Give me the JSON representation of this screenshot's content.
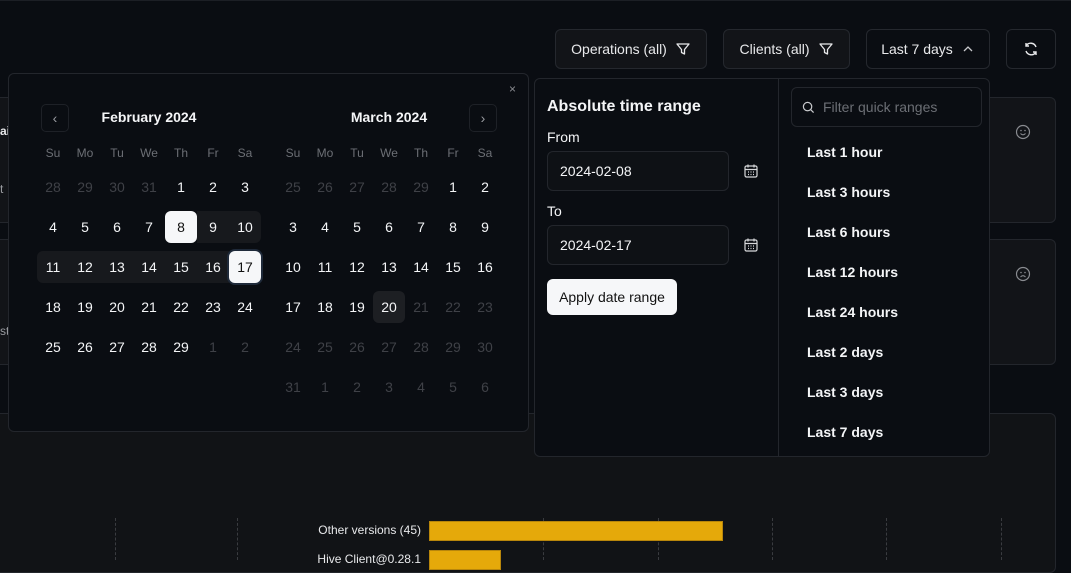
{
  "toolbar": {
    "operations_label": "Operations (all)",
    "clients_label": "Clients (all)",
    "range_label": "Last 7 days"
  },
  "background": {
    "fragments": [
      "ai",
      "t",
      "st"
    ]
  },
  "chart_data": {
    "type": "bar",
    "orientation": "horizontal",
    "categories": [
      "Other versions (45)",
      "Hive Client@0.28.1"
    ],
    "values": [
      45,
      11
    ],
    "bar_color": "#e5a90a",
    "grid": true
  },
  "calendar": {
    "months": [
      {
        "title": "February 2024",
        "weekdays": [
          "Su",
          "Mo",
          "Tu",
          "We",
          "Th",
          "Fr",
          "Sa"
        ],
        "weeks": [
          [
            {
              "d": "28",
              "s": "outside"
            },
            {
              "d": "29",
              "s": "outside"
            },
            {
              "d": "30",
              "s": "outside"
            },
            {
              "d": "31",
              "s": "outside"
            },
            {
              "d": "1"
            },
            {
              "d": "2"
            },
            {
              "d": "3"
            }
          ],
          [
            {
              "d": "4"
            },
            {
              "d": "5"
            },
            {
              "d": "6"
            },
            {
              "d": "7"
            },
            {
              "d": "8",
              "s": "range-start"
            },
            {
              "d": "9",
              "s": "range"
            },
            {
              "d": "10",
              "s": "range"
            }
          ],
          [
            {
              "d": "11",
              "s": "range"
            },
            {
              "d": "12",
              "s": "range"
            },
            {
              "d": "13",
              "s": "range"
            },
            {
              "d": "14",
              "s": "range"
            },
            {
              "d": "15",
              "s": "range"
            },
            {
              "d": "16",
              "s": "range"
            },
            {
              "d": "17",
              "s": "range-end"
            }
          ],
          [
            {
              "d": "18"
            },
            {
              "d": "19"
            },
            {
              "d": "20"
            },
            {
              "d": "21"
            },
            {
              "d": "22"
            },
            {
              "d": "23"
            },
            {
              "d": "24"
            }
          ],
          [
            {
              "d": "25"
            },
            {
              "d": "26"
            },
            {
              "d": "27"
            },
            {
              "d": "28"
            },
            {
              "d": "29"
            },
            {
              "d": "1",
              "s": "outside"
            },
            {
              "d": "2",
              "s": "outside"
            }
          ]
        ]
      },
      {
        "title": "March 2024",
        "weekdays": [
          "Su",
          "Mo",
          "Tu",
          "We",
          "Th",
          "Fr",
          "Sa"
        ],
        "weeks": [
          [
            {
              "d": "25",
              "s": "outside"
            },
            {
              "d": "26",
              "s": "outside"
            },
            {
              "d": "27",
              "s": "outside"
            },
            {
              "d": "28",
              "s": "outside"
            },
            {
              "d": "29",
              "s": "outside"
            },
            {
              "d": "1"
            },
            {
              "d": "2"
            }
          ],
          [
            {
              "d": "3"
            },
            {
              "d": "4"
            },
            {
              "d": "5"
            },
            {
              "d": "6"
            },
            {
              "d": "7"
            },
            {
              "d": "8"
            },
            {
              "d": "9"
            }
          ],
          [
            {
              "d": "10"
            },
            {
              "d": "11"
            },
            {
              "d": "12"
            },
            {
              "d": "13"
            },
            {
              "d": "14"
            },
            {
              "d": "15"
            },
            {
              "d": "16"
            }
          ],
          [
            {
              "d": "17"
            },
            {
              "d": "18"
            },
            {
              "d": "19"
            },
            {
              "d": "20",
              "s": "today"
            },
            {
              "d": "21",
              "s": "disabled"
            },
            {
              "d": "22",
              "s": "disabled"
            },
            {
              "d": "23",
              "s": "disabled"
            }
          ],
          [
            {
              "d": "24",
              "s": "disabled"
            },
            {
              "d": "25",
              "s": "disabled"
            },
            {
              "d": "26",
              "s": "disabled"
            },
            {
              "d": "27",
              "s": "disabled"
            },
            {
              "d": "28",
              "s": "disabled"
            },
            {
              "d": "29",
              "s": "disabled"
            },
            {
              "d": "30",
              "s": "disabled"
            }
          ],
          [
            {
              "d": "31",
              "s": "disabled"
            },
            {
              "d": "1",
              "s": "disabled"
            },
            {
              "d": "2",
              "s": "disabled"
            },
            {
              "d": "3",
              "s": "disabled"
            },
            {
              "d": "4",
              "s": "disabled"
            },
            {
              "d": "5",
              "s": "disabled"
            },
            {
              "d": "6",
              "s": "disabled"
            }
          ]
        ]
      }
    ],
    "close_glyph": "×"
  },
  "time_range": {
    "title": "Absolute time range",
    "from_label": "From",
    "from_value": "2024-02-08",
    "to_label": "To",
    "to_value": "2024-02-17",
    "apply_label": "Apply date range",
    "search_placeholder": "Filter quick ranges",
    "quick_ranges": [
      "Last 1 hour",
      "Last 3 hours",
      "Last 6 hours",
      "Last 12 hours",
      "Last 24 hours",
      "Last 2 days",
      "Last 3 days",
      "Last 7 days"
    ]
  }
}
